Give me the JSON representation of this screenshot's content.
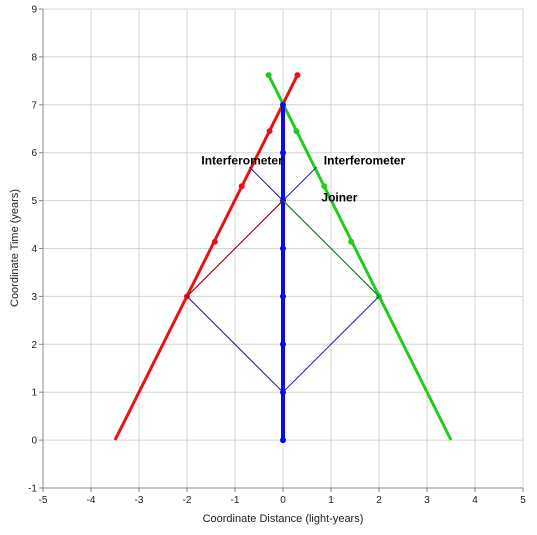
{
  "chart_data": {
    "type": "line",
    "title": "",
    "xlabel": "Coordinate Distance (light-years)",
    "ylabel": "Coordinate Time (years)",
    "xlim": [
      -5,
      5
    ],
    "ylim": [
      -1,
      9
    ],
    "x_ticks": [
      -5,
      -4,
      -3,
      -2,
      -1,
      0,
      1,
      2,
      3,
      4,
      5
    ],
    "y_ticks": [
      -1,
      0,
      1,
      2,
      3,
      4,
      5,
      6,
      7,
      8,
      9
    ],
    "grid": true,
    "colors": {
      "red": "#ee1111",
      "green": "#22cc22",
      "blue": "#0a0ae6",
      "navy": "#1a1a99",
      "darkred": "#aa0000",
      "darkgreen": "#118811",
      "grid": "#d4d4d4",
      "axis": "#888888"
    },
    "series": [
      {
        "color_key": "red",
        "width": 3,
        "markers": false,
        "points": [
          [
            -3.5,
            0
          ],
          [
            0.3,
            7.62
          ]
        ]
      },
      {
        "color_key": "red",
        "width": 0,
        "markers": true,
        "points": [
          [
            -2,
            3
          ],
          [
            -1.42,
            4.14
          ],
          [
            -0.86,
            5.3
          ],
          [
            -0.28,
            6.45
          ],
          [
            0.3,
            7.62
          ]
        ]
      },
      {
        "color_key": "green",
        "width": 3,
        "markers": false,
        "points": [
          [
            -0.3,
            7.62
          ],
          [
            3.5,
            0
          ]
        ]
      },
      {
        "color_key": "green",
        "width": 0,
        "markers": true,
        "points": [
          [
            -0.3,
            7.62
          ],
          [
            0.28,
            6.45
          ],
          [
            0.86,
            5.3
          ],
          [
            1.42,
            4.14
          ],
          [
            2,
            3
          ]
        ]
      },
      {
        "color_key": "blue",
        "width": 4,
        "markers": true,
        "points": [
          [
            0,
            0
          ],
          [
            0,
            1
          ],
          [
            0,
            2
          ],
          [
            0,
            3
          ],
          [
            0,
            4
          ],
          [
            0,
            5
          ],
          [
            0,
            6
          ],
          [
            0,
            7
          ]
        ]
      },
      {
        "color_key": "navy",
        "width": 1,
        "markers": false,
        "points": [
          [
            0,
            1
          ],
          [
            -2,
            3
          ],
          [
            0,
            5
          ]
        ]
      },
      {
        "color_key": "navy",
        "width": 1,
        "markers": false,
        "points": [
          [
            0,
            1
          ],
          [
            2,
            3
          ],
          [
            0,
            5
          ]
        ]
      },
      {
        "color_key": "navy",
        "width": 1,
        "markers": false,
        "points": [
          [
            -0.7,
            5.7
          ],
          [
            0,
            5
          ],
          [
            0.7,
            5.7
          ]
        ]
      },
      {
        "color_key": "darkred",
        "width": 1,
        "markers": false,
        "points": [
          [
            -2,
            3
          ],
          [
            0,
            5
          ]
        ]
      },
      {
        "color_key": "darkgreen",
        "width": 1,
        "markers": false,
        "points": [
          [
            0,
            5
          ],
          [
            2,
            3
          ]
        ]
      }
    ],
    "annotations": [
      {
        "text": "Interferometer",
        "x": -1.7,
        "y": 5.75
      },
      {
        "text": "Interferometer",
        "x": 0.85,
        "y": 5.75
      },
      {
        "text": "Joiner",
        "x": 0.8,
        "y": 4.98
      }
    ]
  }
}
